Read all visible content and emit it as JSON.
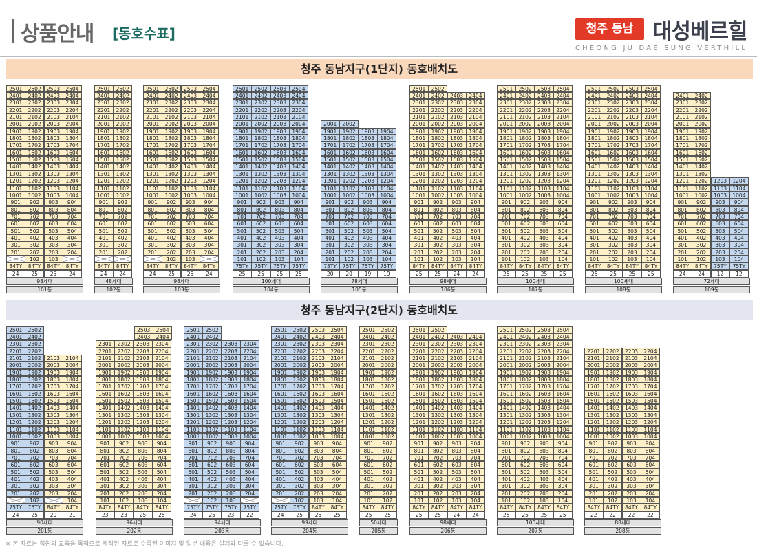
{
  "header": {
    "title": "상품안내",
    "subtitle": "[동호수표]",
    "badge": "청주 동남",
    "brand": "대성베르힐",
    "brand_en": "CHEONG JU DAE SUNG VERTHILL"
  },
  "colors": {
    "84TY": "#fdf0c9",
    "75TY": "#c3d8ee",
    "accent": "#e33a28"
  },
  "sections": [
    {
      "title": "청주 동남지구(1단지) 동호배치도",
      "buildings": [
        {
          "dong": "101동",
          "units": "98세대",
          "lines": [
            {
              "top": 25,
              "bottom": 2,
              "type": "84TY",
              "count": "24"
            },
            {
              "top": 25,
              "bottom": 1,
              "type": "84TY",
              "count": "25"
            },
            {
              "top": 25,
              "bottom": 1,
              "type": "84TY",
              "count": "25"
            },
            {
              "top": 25,
              "bottom": 2,
              "type": "84TY",
              "count": "24"
            }
          ]
        },
        {
          "dong": "102동",
          "units": "48세대",
          "lines": [
            {
              "top": 25,
              "bottom": 2,
              "type": "84TY",
              "count": "24"
            },
            {
              "top": 25,
              "bottom": 2,
              "type": "84TY",
              "count": "24"
            }
          ]
        },
        {
          "dong": "103동",
          "units": "98세대",
          "lines": [
            {
              "top": 25,
              "bottom": 2,
              "type": "84TY",
              "count": "24"
            },
            {
              "top": 25,
              "bottom": 1,
              "type": "84TY",
              "count": "25"
            },
            {
              "top": 25,
              "bottom": 1,
              "type": "84TY",
              "count": "25"
            },
            {
              "top": 25,
              "bottom": 2,
              "type": "84TY",
              "count": "24"
            }
          ]
        },
        {
          "dong": "104동",
          "units": "100세대",
          "lines": [
            {
              "top": 25,
              "bottom": 1,
              "type": "75TY",
              "count": "25"
            },
            {
              "top": 25,
              "bottom": 1,
              "type": "75TY",
              "count": "25"
            },
            {
              "top": 25,
              "bottom": 1,
              "type": "75TY",
              "count": "25"
            },
            {
              "top": 25,
              "bottom": 1,
              "type": "75TY",
              "count": "25"
            }
          ]
        },
        {
          "dong": "105동",
          "units": "78세대",
          "lines": [
            {
              "top": 20,
              "bottom": 1,
              "type": "75TY",
              "count": "20"
            },
            {
              "top": 20,
              "bottom": 1,
              "type": "75TY",
              "count": "20"
            },
            {
              "top": 19,
              "bottom": 1,
              "type": "75TY",
              "count": "19"
            },
            {
              "top": 19,
              "bottom": 1,
              "type": "75TY",
              "count": "19"
            }
          ]
        },
        {
          "dong": "106동",
          "units": "98세대",
          "lines": [
            {
              "top": 25,
              "bottom": 1,
              "type": "84TY",
              "count": "25"
            },
            {
              "top": 25,
              "bottom": 1,
              "type": "84TY",
              "count": "25"
            },
            {
              "top": 24,
              "bottom": 1,
              "type": "84TY",
              "count": "24"
            },
            {
              "top": 24,
              "bottom": 1,
              "type": "84TY",
              "count": "24"
            }
          ]
        },
        {
          "dong": "107동",
          "units": "100세대",
          "lines": [
            {
              "top": 25,
              "bottom": 1,
              "type": "84TY",
              "count": "25"
            },
            {
              "top": 25,
              "bottom": 1,
              "type": "84TY",
              "count": "25"
            },
            {
              "top": 25,
              "bottom": 1,
              "type": "84TY",
              "count": "25"
            },
            {
              "top": 25,
              "bottom": 1,
              "type": "84TY",
              "count": "25"
            }
          ]
        },
        {
          "dong": "108동",
          "units": "100세대",
          "lines": [
            {
              "top": 25,
              "bottom": 1,
              "type": "84TY",
              "count": "25"
            },
            {
              "top": 25,
              "bottom": 1,
              "type": "84TY",
              "count": "25"
            },
            {
              "top": 25,
              "bottom": 1,
              "type": "84TY",
              "count": "25"
            },
            {
              "top": 25,
              "bottom": 1,
              "type": "84TY",
              "count": "25"
            }
          ]
        },
        {
          "dong": "109동",
          "units": "72세대",
          "lines": [
            {
              "top": 24,
              "bottom": 1,
              "type": "84TY",
              "count": "24"
            },
            {
              "top": 24,
              "bottom": 1,
              "type": "84TY",
              "count": "24"
            },
            {
              "top": 12,
              "bottom": 1,
              "type": "75TY",
              "count": "12"
            },
            {
              "top": 12,
              "bottom": 1,
              "type": "75TY",
              "count": "12"
            }
          ]
        }
      ]
    },
    {
      "title": "청주 동남지구(2단지) 동호배치도",
      "buildings": [
        {
          "dong": "201동",
          "units": "90세대",
          "lines": [
            {
              "top": 25,
              "bottom": 2,
              "type": "75TY",
              "count": "24"
            },
            {
              "top": 25,
              "bottom": 1,
              "type": "75TY",
              "count": "25"
            },
            {
              "top": 21,
              "bottom": 2,
              "type": "84TY",
              "count": "20"
            },
            {
              "top": 21,
              "bottom": 1,
              "type": "84TY",
              "count": "21"
            }
          ]
        },
        {
          "dong": "202동",
          "units": "96세대",
          "lines": [
            {
              "top": 23,
              "bottom": 1,
              "type": "84TY",
              "count": "23"
            },
            {
              "top": 23,
              "bottom": 1,
              "type": "84TY",
              "count": "23"
            },
            {
              "top": 25,
              "bottom": 1,
              "type": "84TY",
              "count": "25"
            },
            {
              "top": 25,
              "bottom": 1,
              "type": "84TY",
              "count": "25"
            }
          ]
        },
        {
          "dong": "203동",
          "units": "94세대",
          "lines": [
            {
              "top": 25,
              "bottom": 2,
              "type": "75TY",
              "count": "24"
            },
            {
              "top": 25,
              "bottom": 1,
              "type": "75TY",
              "count": "25"
            },
            {
              "top": 23,
              "bottom": 1,
              "type": "75TY",
              "count": "23"
            },
            {
              "top": 23,
              "bottom": 2,
              "type": "75TY",
              "count": "22"
            }
          ]
        },
        {
          "dong": "204동",
          "units": "99세대",
          "lines": [
            {
              "top": 25,
              "bottom": 2,
              "type": "75TY",
              "count": "24"
            },
            {
              "top": 25,
              "bottom": 1,
              "type": "75TY",
              "count": "25"
            },
            {
              "top": 25,
              "bottom": 1,
              "type": "84TY",
              "count": "25"
            },
            {
              "top": 25,
              "bottom": 1,
              "type": "84TY",
              "count": "25"
            }
          ]
        },
        {
          "dong": "205동",
          "units": "50세대",
          "lines": [
            {
              "top": 25,
              "bottom": 1,
              "type": "84TY",
              "count": "25"
            },
            {
              "top": 25,
              "bottom": 1,
              "type": "84TY",
              "count": "25"
            }
          ]
        },
        {
          "dong": "206동",
          "units": "98세대",
          "lines": [
            {
              "top": 25,
              "bottom": 1,
              "type": "84TY",
              "count": "25"
            },
            {
              "top": 25,
              "bottom": 1,
              "type": "84TY",
              "count": "25"
            },
            {
              "top": 24,
              "bottom": 1,
              "type": "84TY",
              "count": "24"
            },
            {
              "top": 24,
              "bottom": 1,
              "type": "84TY",
              "count": "24"
            }
          ]
        },
        {
          "dong": "207동",
          "units": "100세대",
          "lines": [
            {
              "top": 25,
              "bottom": 1,
              "type": "84TY",
              "count": "25"
            },
            {
              "top": 25,
              "bottom": 1,
              "type": "84TY",
              "count": "25"
            },
            {
              "top": 25,
              "bottom": 1,
              "type": "84TY",
              "count": "25"
            },
            {
              "top": 25,
              "bottom": 1,
              "type": "84TY",
              "count": "25"
            }
          ]
        },
        {
          "dong": "208동",
          "units": "88세대",
          "lines": [
            {
              "top": 22,
              "bottom": 1,
              "type": "84TY",
              "count": "22"
            },
            {
              "top": 22,
              "bottom": 1,
              "type": "84TY",
              "count": "22"
            },
            {
              "top": 22,
              "bottom": 1,
              "type": "84TY",
              "count": "22"
            },
            {
              "top": 22,
              "bottom": 1,
              "type": "84TY",
              "count": "22"
            }
          ]
        }
      ]
    }
  ],
  "footer": "※ 본 자료는 직원의 교육을 목적으로 제작된 자료로 수록된 이미지 및 일부 내용은 실제와 다를 수 있습니다."
}
